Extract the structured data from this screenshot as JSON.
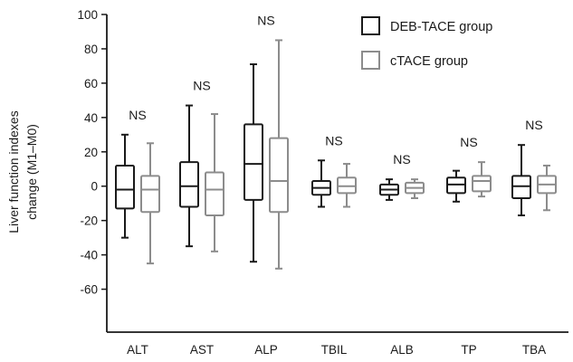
{
  "chart_data": {
    "type": "boxplot",
    "ylabel_lines": [
      "Liver function indexes",
      "change (M1–M0)"
    ],
    "xlabel": "",
    "ylim": [
      -85,
      100
    ],
    "yticks": [
      100,
      80,
      60,
      40,
      20,
      0,
      -20,
      -40,
      -60
    ],
    "grid": false,
    "legend_position": "top-right",
    "categories": [
      "ALT",
      "AST",
      "ALP",
      "TBIL",
      "ALB",
      "TP",
      "TBA"
    ],
    "significance": [
      "NS",
      "NS",
      "NS",
      "NS",
      "NS",
      "NS",
      "NS"
    ],
    "series": [
      {
        "name": "DEB-TACE group",
        "color": "#1a1a1a",
        "boxes": [
          {
            "min": -30,
            "q1": -13,
            "median": -2,
            "q3": 12,
            "max": 30
          },
          {
            "min": -35,
            "q1": -12,
            "median": 0,
            "q3": 14,
            "max": 47
          },
          {
            "min": -44,
            "q1": -8,
            "median": 13,
            "q3": 36,
            "max": 71
          },
          {
            "min": -12,
            "q1": -5,
            "median": -1,
            "q3": 3,
            "max": 15
          },
          {
            "min": -8,
            "q1": -5,
            "median": -2,
            "q3": 1,
            "max": 4
          },
          {
            "min": -9,
            "q1": -4,
            "median": 1,
            "q3": 5,
            "max": 9
          },
          {
            "min": -17,
            "q1": -7,
            "median": 0,
            "q3": 6,
            "max": 24
          }
        ]
      },
      {
        "name": "cTACE group",
        "color": "#8c8c8c",
        "boxes": [
          {
            "min": -45,
            "q1": -15,
            "median": -2,
            "q3": 6,
            "max": 25
          },
          {
            "min": -38,
            "q1": -17,
            "median": -2,
            "q3": 8,
            "max": 42
          },
          {
            "min": -48,
            "q1": -15,
            "median": 3,
            "q3": 28,
            "max": 85
          },
          {
            "min": -12,
            "q1": -4,
            "median": 0,
            "q3": 5,
            "max": 13
          },
          {
            "min": -7,
            "q1": -4,
            "median": -1,
            "q3": 2,
            "max": 4
          },
          {
            "min": -6,
            "q1": -3,
            "median": 3,
            "q3": 6,
            "max": 14
          },
          {
            "min": -14,
            "q1": -4,
            "median": 1,
            "q3": 6,
            "max": 12
          }
        ]
      }
    ]
  }
}
